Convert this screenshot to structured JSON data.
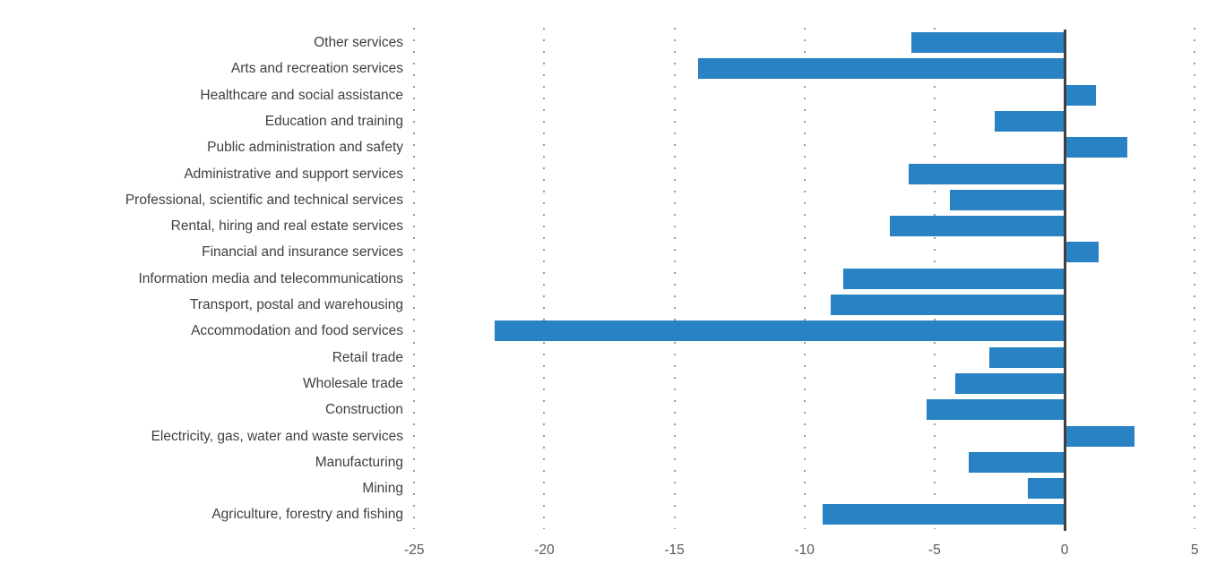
{
  "chart_data": {
    "type": "bar",
    "orientation": "horizontal",
    "title": "",
    "xlabel": "",
    "ylabel": "",
    "legend": "none",
    "grid": "vertical-dotted",
    "xlim": [
      -27,
      6
    ],
    "xticks": [
      "-25",
      "-20",
      "-15",
      "-10",
      "-5",
      "0",
      "5"
    ],
    "xtick_values": [
      -25,
      -20,
      -15,
      -10,
      -5,
      0,
      5
    ],
    "categories": [
      "Other services",
      "Arts and recreation services",
      "Healthcare and social assistance",
      "Education and training",
      "Public administration and safety",
      "Administrative and support services",
      "Professional, scientific and technical services",
      "Rental, hiring and real estate services",
      "Financial and insurance services",
      "Information media and telecommunications",
      "Transport, postal and warehousing",
      "Accommodation and food services",
      "Retail trade",
      "Wholesale trade",
      "Construction",
      "Electricity, gas, water and waste services",
      "Manufacturing",
      "Mining",
      "Agriculture, forestry and fishing"
    ],
    "values": [
      -5.9,
      -14.1,
      1.2,
      -2.7,
      2.4,
      -6.0,
      -4.4,
      -6.7,
      1.3,
      -8.5,
      -9.0,
      -21.9,
      -2.9,
      -4.2,
      -5.3,
      2.7,
      -3.7,
      -1.4,
      -9.3
    ],
    "colors": {
      "bar": "#2882c4",
      "zero_axis": "#3f3f3f",
      "gridline": "#9b9b9b",
      "tick_label": "#595959",
      "category_label": "#3f3f3f",
      "background": "#ffffff"
    }
  }
}
